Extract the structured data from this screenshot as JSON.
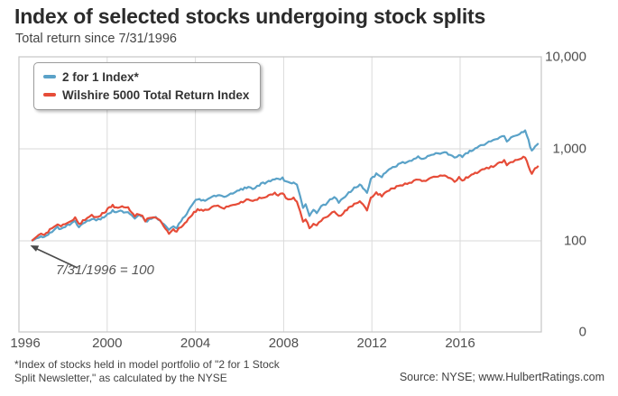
{
  "title": "Index of selected stocks undergoing stock splits",
  "subtitle": "Total return since 7/31/1996",
  "annotation": {
    "text": "7/31/1996 = 100"
  },
  "footnote": {
    "line1": "*Index of stocks held in model portfolio of \"2 for 1 Stock",
    "line2": "Split Newsletter,\" as calculated by the NYSE"
  },
  "source": "Source: NYSE; www.HulbertRatings.com",
  "colors": {
    "blue_series": "#5aa2c8",
    "red_series": "#e64c38",
    "gridline": "#dadada",
    "plot_border": "#c6c6c6",
    "arrow": "#4a4a4a"
  },
  "chart_data": {
    "type": "line",
    "title": "Index of selected stocks undergoing stock splits",
    "subtitle": "Total return since 7/31/1996",
    "y_axis": {
      "scale": "log",
      "side": "right",
      "ticks": [
        {
          "value": 10000,
          "label": "10,000"
        },
        {
          "value": 1000,
          "label": "1,000"
        },
        {
          "value": 100,
          "label": "100"
        },
        {
          "value": 0,
          "label": "0"
        }
      ]
    },
    "x_axis": {
      "ticks": [
        1996,
        2000,
        2004,
        2008,
        2012,
        2016
      ],
      "labels": [
        "1996",
        "2000",
        "2004",
        "2008",
        "2012",
        "2016"
      ],
      "range": [
        1996,
        2019.7
      ]
    },
    "base_note": "7/31/1996 = 100",
    "x": [
      1996.58,
      1996.8,
      1997.0,
      1997.15,
      1997.4,
      1997.6,
      1997.75,
      1997.9,
      1998.1,
      1998.3,
      1998.55,
      1998.72,
      1998.9,
      1999.1,
      1999.3,
      1999.5,
      1999.7,
      1999.85,
      2000.1,
      2000.25,
      2000.4,
      2000.6,
      2000.75,
      2000.95,
      2001.1,
      2001.25,
      2001.45,
      2001.6,
      2001.73,
      2001.9,
      2002.1,
      2002.3,
      2002.5,
      2002.65,
      2002.8,
      2003.0,
      2003.15,
      2003.35,
      2003.6,
      2003.85,
      2004.1,
      2004.35,
      2004.6,
      2004.85,
      2005.1,
      2005.3,
      2005.6,
      2005.9,
      2006.15,
      2006.4,
      2006.6,
      2006.9,
      2007.15,
      2007.4,
      2007.6,
      2007.75,
      2007.95,
      2008.1,
      2008.3,
      2008.45,
      2008.6,
      2008.75,
      2008.88,
      2009.0,
      2009.17,
      2009.35,
      2009.5,
      2009.7,
      2009.9,
      2010.1,
      2010.3,
      2010.5,
      2010.7,
      2010.95,
      2011.2,
      2011.45,
      2011.6,
      2011.78,
      2011.95,
      2012.2,
      2012.45,
      2012.7,
      2012.95,
      2013.2,
      2013.5,
      2013.8,
      2014.1,
      2014.35,
      2014.7,
      2015.0,
      2015.3,
      2015.55,
      2015.75,
      2015.95,
      2016.1,
      2016.35,
      2016.6,
      2016.85,
      2017.1,
      2017.4,
      2017.7,
      2018.0,
      2018.12,
      2018.4,
      2018.7,
      2018.95,
      2019.1,
      2019.25,
      2019.4,
      2019.55
    ],
    "series": [
      {
        "name": "2 for 1 Index*",
        "color": "#5aa2c8",
        "values": [
          100,
          107,
          113,
          110,
          122,
          133,
          139,
          132,
          143,
          152,
          164,
          140,
          152,
          166,
          172,
          167,
          174,
          181,
          201,
          211,
          200,
          209,
          204,
          210,
          191,
          178,
          190,
          184,
          159,
          172,
          181,
          175,
          158,
          142,
          133,
          146,
          140,
          162,
          199,
          250,
          285,
          272,
          290,
          308,
          315,
          303,
          328,
          344,
          367,
          388,
          371,
          407,
          428,
          452,
          476,
          462,
          478,
          440,
          418,
          442,
          398,
          308,
          228,
          250,
          184,
          216,
          201,
          236,
          247,
          276,
          302,
          264,
          289,
          331,
          379,
          405,
          379,
          331,
          465,
          532,
          497,
          570,
          625,
          681,
          712,
          760,
          815,
          782,
          853,
          893,
          913,
          853,
          796,
          872,
          815,
          913,
          978,
          1046,
          1121,
          1200,
          1286,
          1405,
          1229,
          1374,
          1480,
          1555,
          1230,
          935,
          1060,
          1148
        ]
      },
      {
        "name": "Wilshire 5000 Total Return Index",
        "color": "#e64c38",
        "values": [
          100,
          111,
          118,
          115,
          131,
          142,
          149,
          141,
          154,
          164,
          178,
          150,
          164,
          181,
          189,
          182,
          191,
          201,
          229,
          243,
          227,
          237,
          228,
          227,
          203,
          187,
          198,
          190,
          164,
          177,
          184,
          175,
          154,
          134,
          122,
          134,
          127,
          143,
          164,
          194,
          221,
          212,
          223,
          234,
          238,
          229,
          245,
          255,
          268,
          279,
          267,
          290,
          302,
          317,
          330,
          318,
          328,
          297,
          283,
          296,
          266,
          212,
          160,
          172,
          137,
          157,
          147,
          168,
          176,
          193,
          211,
          184,
          201,
          226,
          252,
          264,
          247,
          216,
          295,
          331,
          309,
          347,
          371,
          396,
          414,
          433,
          465,
          443,
          487,
          497,
          509,
          476,
          443,
          487,
          454,
          497,
          532,
          570,
          595,
          635,
          681,
          745,
          667,
          729,
          775,
          818,
          640,
          532,
          609,
          652
        ]
      }
    ]
  }
}
